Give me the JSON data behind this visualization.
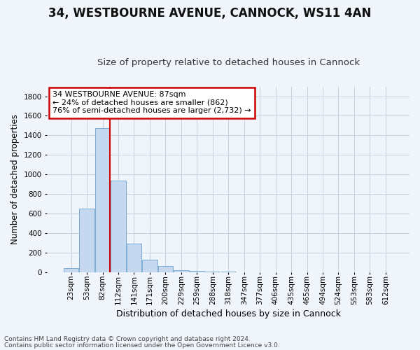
{
  "title": "34, WESTBOURNE AVENUE, CANNOCK, WS11 4AN",
  "subtitle": "Size of property relative to detached houses in Cannock",
  "xlabel": "Distribution of detached houses by size in Cannock",
  "ylabel": "Number of detached properties",
  "bar_labels": [
    "23sqm",
    "53sqm",
    "82sqm",
    "112sqm",
    "141sqm",
    "171sqm",
    "200sqm",
    "229sqm",
    "259sqm",
    "288sqm",
    "318sqm",
    "347sqm",
    "377sqm",
    "406sqm",
    "435sqm",
    "465sqm",
    "494sqm",
    "524sqm",
    "553sqm",
    "583sqm",
    "612sqm"
  ],
  "bar_values": [
    38,
    650,
    1475,
    935,
    290,
    125,
    62,
    22,
    10,
    5,
    2,
    1,
    0,
    0,
    0,
    0,
    0,
    0,
    0,
    0,
    0
  ],
  "bar_color": "#c5d8ef",
  "bar_edge_color": "#7aadd4",
  "highlight_index": 2,
  "highlight_line_color": "#cc0000",
  "annotation_line1": "34 WESTBOURNE AVENUE: 87sqm",
  "annotation_line2": "← 24% of detached houses are smaller (862)",
  "annotation_line3": "76% of semi-detached houses are larger (2,732) →",
  "annotation_box_color": "#ffffff",
  "annotation_box_edge_color": "#cc0000",
  "ylim": [
    0,
    1900
  ],
  "yticks": [
    0,
    200,
    400,
    600,
    800,
    1000,
    1200,
    1400,
    1600,
    1800
  ],
  "footer_line1": "Contains HM Land Registry data © Crown copyright and database right 2024.",
  "footer_line2": "Contains public sector information licensed under the Open Government Licence v3.0.",
  "bg_color": "#f0f4fb",
  "grid_color": "#c8cfe0",
  "title_fontsize": 12,
  "subtitle_fontsize": 9.5
}
